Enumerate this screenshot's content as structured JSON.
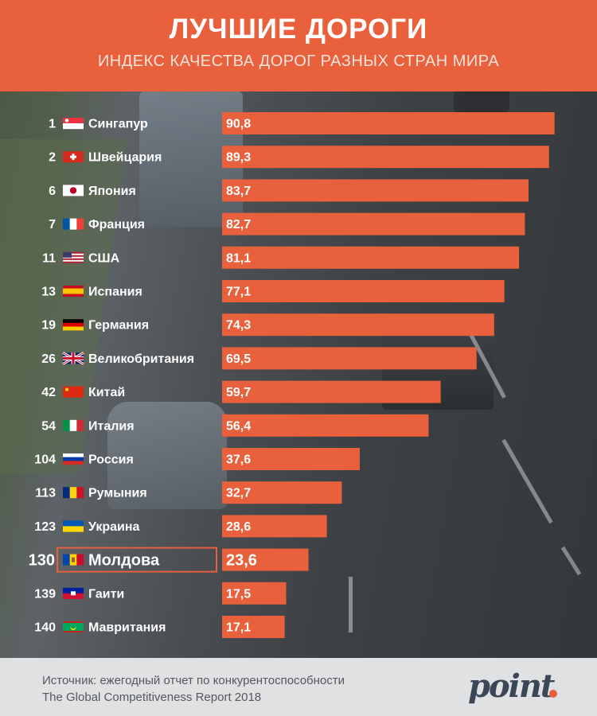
{
  "chart_data": {
    "type": "bar",
    "orientation": "horizontal",
    "title": "ЛУЧШИЕ ДОРОГИ",
    "subtitle": "ИНДЕКС КАЧЕСТВА ДОРОГ РАЗНЫХ СТРАН МИРА",
    "xlim": [
      0,
      100
    ],
    "highlight": "Молдова",
    "rows": [
      {
        "rank": "1",
        "country": "Сингапур",
        "value": 90.8,
        "label": "90,8",
        "flag": "singapore-flag"
      },
      {
        "rank": "2",
        "country": "Швейцария",
        "value": 89.3,
        "label": "89,3",
        "flag": "switzerland-flag"
      },
      {
        "rank": "6",
        "country": "Япония",
        "value": 83.7,
        "label": "83,7",
        "flag": "japan-flag"
      },
      {
        "rank": "7",
        "country": "Франция",
        "value": 82.7,
        "label": "82,7",
        "flag": "france-flag"
      },
      {
        "rank": "11",
        "country": "США",
        "value": 81.1,
        "label": "81,1",
        "flag": "usa-flag"
      },
      {
        "rank": "13",
        "country": "Испания",
        "value": 77.1,
        "label": "77,1",
        "flag": "spain-flag"
      },
      {
        "rank": "19",
        "country": "Германия",
        "value": 74.3,
        "label": "74,3",
        "flag": "germany-flag"
      },
      {
        "rank": "26",
        "country": "Великобритания",
        "value": 69.5,
        "label": "69,5",
        "flag": "uk-flag"
      },
      {
        "rank": "42",
        "country": "Китай",
        "value": 59.7,
        "label": "59,7",
        "flag": "china-flag"
      },
      {
        "rank": "54",
        "country": "Италия",
        "value": 56.4,
        "label": "56,4",
        "flag": "italy-flag"
      },
      {
        "rank": "104",
        "country": "Россия",
        "value": 37.6,
        "label": "37,6",
        "flag": "russia-flag"
      },
      {
        "rank": "113",
        "country": "Румыния",
        "value": 32.7,
        "label": "32,7",
        "flag": "romania-flag"
      },
      {
        "rank": "123",
        "country": "Украина",
        "value": 28.6,
        "label": "28,6",
        "flag": "ukraine-flag"
      },
      {
        "rank": "130",
        "country": "Молдова",
        "value": 23.6,
        "label": "23,6",
        "flag": "moldova-flag"
      },
      {
        "rank": "139",
        "country": "Гаити",
        "value": 17.5,
        "label": "17,5",
        "flag": "haiti-flag"
      },
      {
        "rank": "140",
        "country": "Мавритания",
        "value": 17.1,
        "label": "17,1",
        "flag": "mauritania-flag"
      }
    ]
  },
  "colors": {
    "accent": "#e8603c",
    "text": "#ffffff",
    "footer_bg": "#e0e1e3"
  },
  "footer": {
    "source_line1": "Источник: ежегодный отчет по конкурентоспособности",
    "source_line2": "The Global Competitiveness Report 2018",
    "logo": "point"
  }
}
